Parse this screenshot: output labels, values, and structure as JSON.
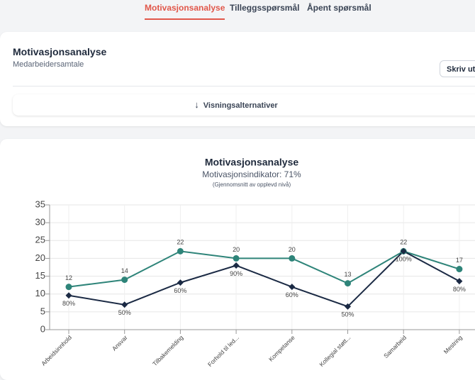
{
  "tabs": [
    "Motivasjonsanalyse",
    "Tilleggsspørsmål",
    "Åpent spørsmål"
  ],
  "header": {
    "title": "Motivasjonsanalyse",
    "subtitle": "Medarbeidersamtale",
    "print_button": "Skriv ut",
    "options_button": "Visningsalternativer"
  },
  "chart_data": {
    "type": "line",
    "title": "Motivasjonsanalyse",
    "subtitle": "Motivasjonsindikator: 71%",
    "note": "(Gjennomsnitt av opplevd nivå)",
    "categories": [
      "Arbeidsinnhold",
      "Ansvar",
      "Tilbakemelding",
      "Forhold til led...",
      "Kompetanse",
      "Kollegial støtt...",
      "Samarbeid",
      "Mestring"
    ],
    "series": [
      {
        "color": "#2e8479",
        "marker": "circle",
        "values": [
          12,
          14,
          22,
          20,
          20,
          13,
          22,
          17
        ]
      },
      {
        "color": "#1b2a44",
        "marker": "diamond",
        "values": [
          9.6,
          7,
          13.2,
          18,
          12,
          6.5,
          22,
          13.6
        ]
      }
    ],
    "annotations": [
      "80%",
      "50%",
      "60%",
      "90%",
      "60%",
      "50%",
      "100%",
      "80%"
    ],
    "ylim": [
      0,
      35
    ],
    "yticks": [
      0,
      5,
      10,
      15,
      20,
      25,
      30,
      35
    ],
    "grid": true
  }
}
